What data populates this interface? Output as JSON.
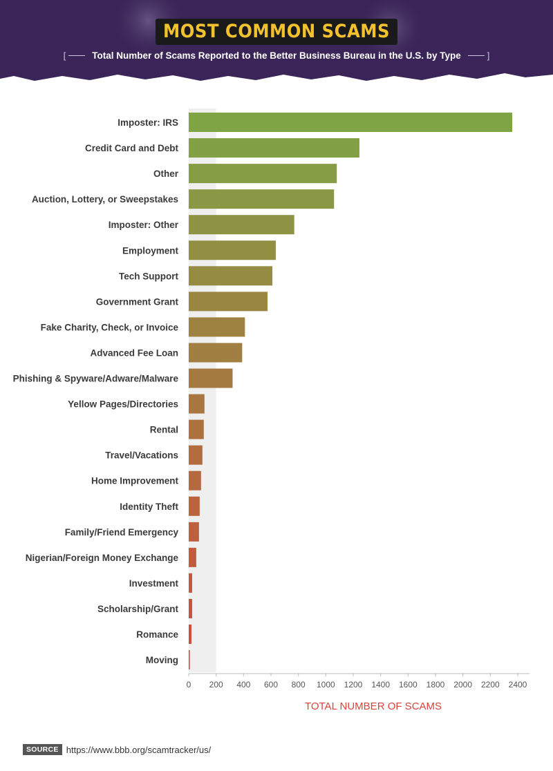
{
  "header": {
    "title": "MOST COMMON SCAMS",
    "subtitle": "Total Number of Scams Reported to the Better Business Bureau  in the U.S. by Type"
  },
  "source": {
    "label": "SOURCE",
    "url": "https://www.bbb.org/scamtracker/us/"
  },
  "colors": {
    "header_bg": "#3b2558",
    "bar_start": "#7ea446",
    "bar_end": "#d04b3a",
    "highlight_band": "#efefef",
    "axis_title": "#d8433a"
  },
  "chart_data": {
    "type": "bar",
    "orientation": "horizontal",
    "title": "MOST COMMON SCAMS",
    "subtitle": "Total Number of Scams Reported to the Better Business Bureau  in the U.S. by Type",
    "xlabel": "TOTAL NUMBER OF SCAMS",
    "ylabel": "",
    "xlim": [
      0,
      2400
    ],
    "xticks": [
      0,
      200,
      400,
      600,
      800,
      1000,
      1200,
      1400,
      1600,
      1800,
      2000,
      2200,
      2400
    ],
    "categories": [
      "Imposter: IRS",
      "Credit Card and Debt",
      "Other",
      "Auction, Lottery, or Sweepstakes",
      "Imposter: Other",
      "Employment",
      "Tech Support",
      "Government Grant",
      "Fake Charity, Check, or Invoice",
      "Advanced Fee Loan",
      "Phishing & Spyware/Adware/Malware",
      "Yellow Pages/Directories",
      "Rental",
      "Travel/Vacations",
      "Home Improvement",
      "Identity Theft",
      "Family/Friend Emergency",
      "Nigerian/Foreign Money Exchange",
      "Investment",
      "Scholarship/Grant",
      "Romance",
      "Moving"
    ],
    "values": [
      2360,
      1245,
      1080,
      1060,
      770,
      635,
      610,
      575,
      410,
      390,
      320,
      115,
      110,
      100,
      90,
      80,
      75,
      55,
      25,
      25,
      20,
      8
    ],
    "highlight_range": [
      0,
      200
    ],
    "grid": false,
    "legend": "none"
  }
}
